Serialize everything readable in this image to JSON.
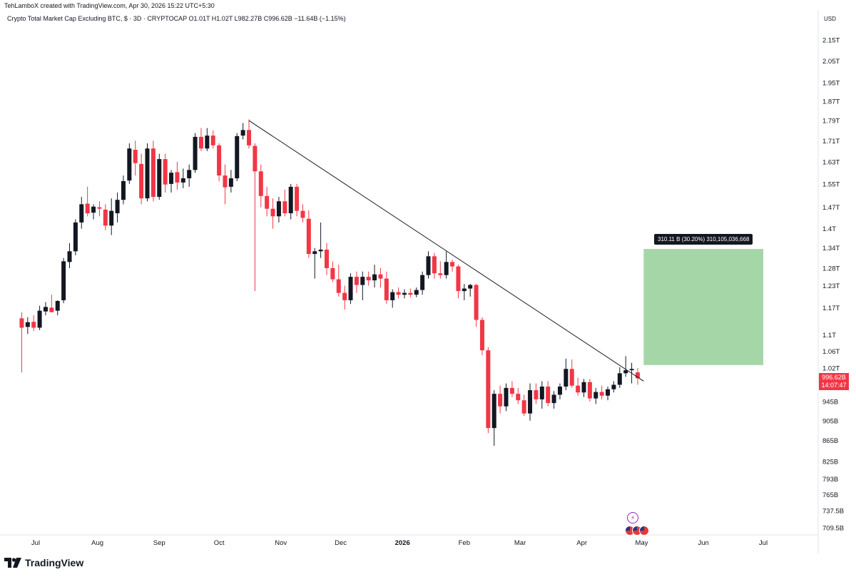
{
  "header": {
    "author_line": "TehLamboX created with TradingView.com, Apr 30, 2026 15:22 UTC+5:30",
    "symbol_name": "Crypto Total Market Cap Excluding BTC, $ · 3D · CRYPTOCAP",
    "ohlc": "O1.01T  H1.02T  L982.27B  C996.62B",
    "change": "−11.64B (−1.15%)"
  },
  "currency": "USD",
  "price_tag": {
    "value": "996.62B",
    "countdown": "14:07:47"
  },
  "measure_tag": "310.11 B (30.20%) 310,105,036,668",
  "logo_text": "TradingView",
  "colors": {
    "up": "#131722",
    "down": "#f23645",
    "target_zone": "#a5d6a7",
    "trendline": "#131722"
  },
  "chart_data": {
    "type": "candlestick",
    "timeframe": "3D",
    "y_scale": "log",
    "y_ticks": [
      {
        "label": "2.15T",
        "value": 2150
      },
      {
        "label": "2.05T",
        "value": 2050
      },
      {
        "label": "1.95T",
        "value": 1950
      },
      {
        "label": "1.87T",
        "value": 1870
      },
      {
        "label": "1.79T",
        "value": 1790
      },
      {
        "label": "1.71T",
        "value": 1710
      },
      {
        "label": "1.63T",
        "value": 1630
      },
      {
        "label": "1.55T",
        "value": 1550
      },
      {
        "label": "1.47T",
        "value": 1470
      },
      {
        "label": "1.4T",
        "value": 1400
      },
      {
        "label": "1.34T",
        "value": 1340
      },
      {
        "label": "1.28T",
        "value": 1280
      },
      {
        "label": "1.23T",
        "value": 1230
      },
      {
        "label": "1.17T",
        "value": 1170
      },
      {
        "label": "1.1T",
        "value": 1100
      },
      {
        "label": "1.06T",
        "value": 1060
      },
      {
        "label": "1.02T",
        "value": 1020
      },
      {
        "label": "945B",
        "value": 945
      },
      {
        "label": "905B",
        "value": 905
      },
      {
        "label": "865B",
        "value": 865
      },
      {
        "label": "825B",
        "value": 825
      },
      {
        "label": "793B",
        "value": 793
      },
      {
        "label": "765B",
        "value": 765
      },
      {
        "label": "737.5B",
        "value": 737.5
      },
      {
        "label": "709.5B",
        "value": 709.5
      }
    ],
    "x_ticks": [
      {
        "label": "Jul",
        "date": "2025-07-01",
        "bold": false
      },
      {
        "label": "Aug",
        "date": "2025-08-01",
        "bold": false
      },
      {
        "label": "Sep",
        "date": "2025-09-01",
        "bold": false
      },
      {
        "label": "Oct",
        "date": "2025-10-01",
        "bold": false
      },
      {
        "label": "Nov",
        "date": "2025-11-01",
        "bold": false
      },
      {
        "label": "Dec",
        "date": "2025-12-01",
        "bold": false
      },
      {
        "label": "2026",
        "date": "2026-01-01",
        "bold": true
      },
      {
        "label": "Feb",
        "date": "2026-02-01",
        "bold": false
      },
      {
        "label": "Mar",
        "date": "2026-03-01",
        "bold": false
      },
      {
        "label": "Apr",
        "date": "2026-04-01",
        "bold": false
      },
      {
        "label": "May",
        "date": "2026-05-01",
        "bold": false
      },
      {
        "label": "Jun",
        "date": "2026-06-01",
        "bold": false
      },
      {
        "label": "Jul",
        "date": "2026-07-01",
        "bold": false
      }
    ],
    "unit": "B USD",
    "candles": [
      {
        "date": "2025-06-24",
        "o": 1142,
        "h": 1158,
        "l": 1010,
        "c": 1118
      },
      {
        "date": "2025-06-27",
        "o": 1120,
        "h": 1145,
        "l": 1102,
        "c": 1132
      },
      {
        "date": "2025-06-30",
        "o": 1133,
        "h": 1150,
        "l": 1110,
        "c": 1118
      },
      {
        "date": "2025-07-03",
        "o": 1118,
        "h": 1175,
        "l": 1112,
        "c": 1162
      },
      {
        "date": "2025-07-06",
        "o": 1160,
        "h": 1185,
        "l": 1150,
        "c": 1172
      },
      {
        "date": "2025-07-09",
        "o": 1170,
        "h": 1205,
        "l": 1160,
        "c": 1158
      },
      {
        "date": "2025-07-12",
        "o": 1162,
        "h": 1190,
        "l": 1150,
        "c": 1188
      },
      {
        "date": "2025-07-15",
        "o": 1190,
        "h": 1310,
        "l": 1182,
        "c": 1300
      },
      {
        "date": "2025-07-18",
        "o": 1298,
        "h": 1355,
        "l": 1280,
        "c": 1330
      },
      {
        "date": "2025-07-21",
        "o": 1330,
        "h": 1430,
        "l": 1318,
        "c": 1420
      },
      {
        "date": "2025-07-24",
        "o": 1420,
        "h": 1505,
        "l": 1400,
        "c": 1480
      },
      {
        "date": "2025-07-27",
        "o": 1482,
        "h": 1540,
        "l": 1440,
        "c": 1450
      },
      {
        "date": "2025-07-30",
        "o": 1452,
        "h": 1480,
        "l": 1430,
        "c": 1472
      },
      {
        "date": "2025-08-02",
        "o": 1470,
        "h": 1490,
        "l": 1440,
        "c": 1465
      },
      {
        "date": "2025-08-05",
        "o": 1462,
        "h": 1480,
        "l": 1395,
        "c": 1410
      },
      {
        "date": "2025-08-08",
        "o": 1410,
        "h": 1500,
        "l": 1380,
        "c": 1458
      },
      {
        "date": "2025-08-11",
        "o": 1450,
        "h": 1520,
        "l": 1420,
        "c": 1495
      },
      {
        "date": "2025-08-14",
        "o": 1495,
        "h": 1580,
        "l": 1480,
        "c": 1560
      },
      {
        "date": "2025-08-17",
        "o": 1562,
        "h": 1700,
        "l": 1550,
        "c": 1680
      },
      {
        "date": "2025-08-20",
        "o": 1675,
        "h": 1710,
        "l": 1580,
        "c": 1625
      },
      {
        "date": "2025-08-23",
        "o": 1622,
        "h": 1660,
        "l": 1480,
        "c": 1500
      },
      {
        "date": "2025-08-26",
        "o": 1500,
        "h": 1700,
        "l": 1490,
        "c": 1680
      },
      {
        "date": "2025-08-29",
        "o": 1680,
        "h": 1710,
        "l": 1490,
        "c": 1505
      },
      {
        "date": "2025-09-01",
        "o": 1505,
        "h": 1660,
        "l": 1495,
        "c": 1640
      },
      {
        "date": "2025-09-04",
        "o": 1640,
        "h": 1660,
        "l": 1520,
        "c": 1548
      },
      {
        "date": "2025-09-07",
        "o": 1550,
        "h": 1600,
        "l": 1520,
        "c": 1590
      },
      {
        "date": "2025-09-10",
        "o": 1592,
        "h": 1630,
        "l": 1530,
        "c": 1555
      },
      {
        "date": "2025-09-13",
        "o": 1555,
        "h": 1605,
        "l": 1535,
        "c": 1570
      },
      {
        "date": "2025-09-16",
        "o": 1570,
        "h": 1620,
        "l": 1540,
        "c": 1600
      },
      {
        "date": "2025-09-19",
        "o": 1600,
        "h": 1740,
        "l": 1590,
        "c": 1725
      },
      {
        "date": "2025-09-22",
        "o": 1725,
        "h": 1760,
        "l": 1670,
        "c": 1680
      },
      {
        "date": "2025-09-25",
        "o": 1680,
        "h": 1760,
        "l": 1670,
        "c": 1730
      },
      {
        "date": "2025-09-28",
        "o": 1730,
        "h": 1750,
        "l": 1680,
        "c": 1692
      },
      {
        "date": "2025-10-01",
        "o": 1692,
        "h": 1700,
        "l": 1560,
        "c": 1580
      },
      {
        "date": "2025-10-04",
        "o": 1580,
        "h": 1620,
        "l": 1480,
        "c": 1538
      },
      {
        "date": "2025-10-07",
        "o": 1540,
        "h": 1600,
        "l": 1520,
        "c": 1570
      },
      {
        "date": "2025-10-10",
        "o": 1570,
        "h": 1740,
        "l": 1560,
        "c": 1728
      },
      {
        "date": "2025-10-13",
        "o": 1730,
        "h": 1780,
        "l": 1715,
        "c": 1752
      },
      {
        "date": "2025-10-16",
        "o": 1752,
        "h": 1795,
        "l": 1680,
        "c": 1692
      },
      {
        "date": "2025-10-19",
        "o": 1690,
        "h": 1700,
        "l": 1215,
        "c": 1595
      },
      {
        "date": "2025-10-22",
        "o": 1595,
        "h": 1620,
        "l": 1470,
        "c": 1508
      },
      {
        "date": "2025-10-25",
        "o": 1508,
        "h": 1540,
        "l": 1440,
        "c": 1465
      },
      {
        "date": "2025-10-28",
        "o": 1465,
        "h": 1500,
        "l": 1400,
        "c": 1440
      },
      {
        "date": "2025-10-31",
        "o": 1440,
        "h": 1505,
        "l": 1420,
        "c": 1490
      },
      {
        "date": "2025-11-03",
        "o": 1490,
        "h": 1530,
        "l": 1440,
        "c": 1450
      },
      {
        "date": "2025-11-06",
        "o": 1450,
        "h": 1550,
        "l": 1430,
        "c": 1540
      },
      {
        "date": "2025-11-09",
        "o": 1540,
        "h": 1550,
        "l": 1440,
        "c": 1458
      },
      {
        "date": "2025-11-12",
        "o": 1458,
        "h": 1480,
        "l": 1420,
        "c": 1435
      },
      {
        "date": "2025-11-15",
        "o": 1432,
        "h": 1460,
        "l": 1310,
        "c": 1322
      },
      {
        "date": "2025-11-18",
        "o": 1322,
        "h": 1340,
        "l": 1250,
        "c": 1330
      },
      {
        "date": "2025-11-21",
        "o": 1330,
        "h": 1420,
        "l": 1310,
        "c": 1335
      },
      {
        "date": "2025-11-24",
        "o": 1335,
        "h": 1355,
        "l": 1260,
        "c": 1280
      },
      {
        "date": "2025-11-27",
        "o": 1280,
        "h": 1300,
        "l": 1240,
        "c": 1248
      },
      {
        "date": "2025-11-30",
        "o": 1248,
        "h": 1290,
        "l": 1200,
        "c": 1210
      },
      {
        "date": "2025-12-03",
        "o": 1210,
        "h": 1230,
        "l": 1165,
        "c": 1190
      },
      {
        "date": "2025-12-06",
        "o": 1190,
        "h": 1265,
        "l": 1180,
        "c": 1255
      },
      {
        "date": "2025-12-09",
        "o": 1255,
        "h": 1270,
        "l": 1210,
        "c": 1232
      },
      {
        "date": "2025-12-12",
        "o": 1232,
        "h": 1270,
        "l": 1190,
        "c": 1255
      },
      {
        "date": "2025-12-15",
        "o": 1255,
        "h": 1270,
        "l": 1230,
        "c": 1245
      },
      {
        "date": "2025-12-18",
        "o": 1245,
        "h": 1290,
        "l": 1225,
        "c": 1262
      },
      {
        "date": "2025-12-21",
        "o": 1262,
        "h": 1280,
        "l": 1225,
        "c": 1250
      },
      {
        "date": "2025-12-24",
        "o": 1250,
        "h": 1270,
        "l": 1180,
        "c": 1190
      },
      {
        "date": "2025-12-27",
        "o": 1190,
        "h": 1220,
        "l": 1170,
        "c": 1212
      },
      {
        "date": "2025-12-30",
        "o": 1212,
        "h": 1225,
        "l": 1195,
        "c": 1205
      },
      {
        "date": "2026-01-02",
        "o": 1205,
        "h": 1220,
        "l": 1195,
        "c": 1210
      },
      {
        "date": "2026-01-05",
        "o": 1210,
        "h": 1222,
        "l": 1198,
        "c": 1205
      },
      {
        "date": "2026-01-08",
        "o": 1205,
        "h": 1225,
        "l": 1198,
        "c": 1218
      },
      {
        "date": "2026-01-11",
        "o": 1218,
        "h": 1270,
        "l": 1205,
        "c": 1260
      },
      {
        "date": "2026-01-14",
        "o": 1260,
        "h": 1330,
        "l": 1250,
        "c": 1315
      },
      {
        "date": "2026-01-17",
        "o": 1315,
        "h": 1325,
        "l": 1250,
        "c": 1265
      },
      {
        "date": "2026-01-20",
        "o": 1265,
        "h": 1300,
        "l": 1250,
        "c": 1260
      },
      {
        "date": "2026-01-23",
        "o": 1260,
        "h": 1330,
        "l": 1250,
        "c": 1298
      },
      {
        "date": "2026-01-26",
        "o": 1298,
        "h": 1305,
        "l": 1270,
        "c": 1285
      },
      {
        "date": "2026-01-29",
        "o": 1285,
        "h": 1290,
        "l": 1195,
        "c": 1215
      },
      {
        "date": "2026-02-01",
        "o": 1215,
        "h": 1235,
        "l": 1190,
        "c": 1222
      },
      {
        "date": "2026-02-04",
        "o": 1222,
        "h": 1235,
        "l": 1200,
        "c": 1232
      },
      {
        "date": "2026-02-07",
        "o": 1232,
        "h": 1235,
        "l": 1120,
        "c": 1138
      },
      {
        "date": "2026-02-10",
        "o": 1138,
        "h": 1145,
        "l": 1050,
        "c": 1062
      },
      {
        "date": "2026-02-13",
        "o": 1062,
        "h": 1070,
        "l": 880,
        "c": 890
      },
      {
        "date": "2026-02-16",
        "o": 890,
        "h": 970,
        "l": 855,
        "c": 962
      },
      {
        "date": "2026-02-19",
        "o": 962,
        "h": 980,
        "l": 920,
        "c": 935
      },
      {
        "date": "2026-02-22",
        "o": 935,
        "h": 985,
        "l": 925,
        "c": 975
      },
      {
        "date": "2026-02-25",
        "o": 975,
        "h": 990,
        "l": 955,
        "c": 962
      },
      {
        "date": "2026-02-28",
        "o": 962,
        "h": 975,
        "l": 940,
        "c": 948
      },
      {
        "date": "2026-03-03",
        "o": 948,
        "h": 960,
        "l": 915,
        "c": 920
      },
      {
        "date": "2026-03-06",
        "o": 920,
        "h": 985,
        "l": 905,
        "c": 970
      },
      {
        "date": "2026-03-09",
        "o": 970,
        "h": 985,
        "l": 940,
        "c": 950
      },
      {
        "date": "2026-03-12",
        "o": 950,
        "h": 990,
        "l": 930,
        "c": 978
      },
      {
        "date": "2026-03-15",
        "o": 978,
        "h": 990,
        "l": 935,
        "c": 942
      },
      {
        "date": "2026-03-18",
        "o": 942,
        "h": 968,
        "l": 930,
        "c": 960
      },
      {
        "date": "2026-03-21",
        "o": 960,
        "h": 985,
        "l": 950,
        "c": 978
      },
      {
        "date": "2026-03-24",
        "o": 978,
        "h": 1042,
        "l": 970,
        "c": 1018
      },
      {
        "date": "2026-03-27",
        "o": 1018,
        "h": 1040,
        "l": 975,
        "c": 980
      },
      {
        "date": "2026-03-30",
        "o": 980,
        "h": 998,
        "l": 958,
        "c": 965
      },
      {
        "date": "2026-04-02",
        "o": 965,
        "h": 995,
        "l": 955,
        "c": 988
      },
      {
        "date": "2026-04-05",
        "o": 988,
        "h": 995,
        "l": 945,
        "c": 952
      },
      {
        "date": "2026-04-08",
        "o": 952,
        "h": 975,
        "l": 940,
        "c": 966
      },
      {
        "date": "2026-04-11",
        "o": 966,
        "h": 980,
        "l": 950,
        "c": 958
      },
      {
        "date": "2026-04-14",
        "o": 958,
        "h": 978,
        "l": 948,
        "c": 972
      },
      {
        "date": "2026-04-17",
        "o": 972,
        "h": 990,
        "l": 965,
        "c": 982
      },
      {
        "date": "2026-04-20",
        "o": 982,
        "h": 1022,
        "l": 975,
        "c": 1008
      },
      {
        "date": "2026-04-23",
        "o": 1008,
        "h": 1048,
        "l": 1000,
        "c": 1015
      },
      {
        "date": "2026-04-26",
        "o": 1015,
        "h": 1032,
        "l": 985,
        "c": 1018
      },
      {
        "date": "2026-04-29",
        "o": 1010,
        "h": 1020,
        "l": 982.27,
        "c": 996.62
      }
    ],
    "trendline": {
      "start": {
        "date": "2025-10-16",
        "value": 1790
      },
      "end": {
        "date": "2026-05-02",
        "value": 990
      }
    },
    "target_zone": {
      "from_date": "2026-05-02",
      "to_date": "2026-07-01",
      "bottom": 1027,
      "top": 1337,
      "change": "310.11 B (30.20%)"
    },
    "last_price": 996.62
  }
}
